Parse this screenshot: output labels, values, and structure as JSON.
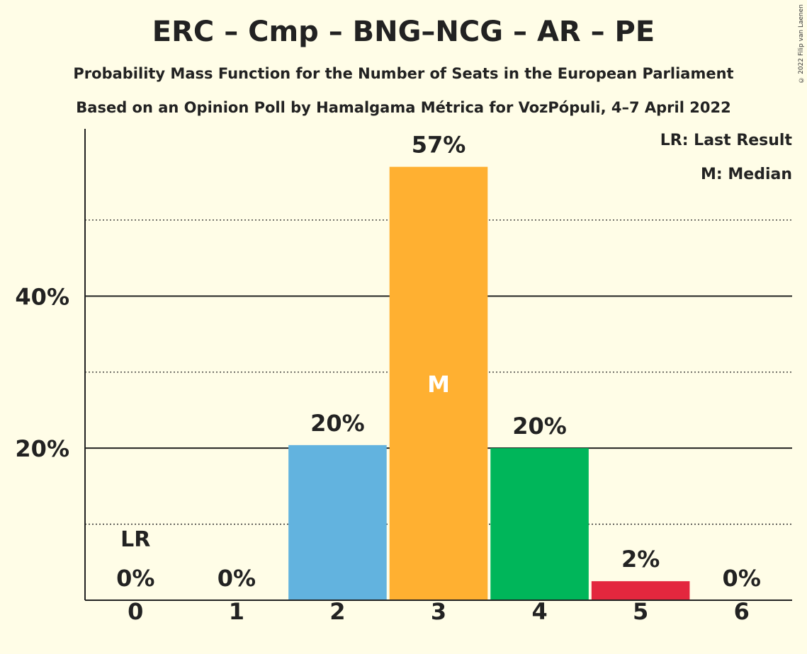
{
  "copyright": "© 2022 Filip van Laenen",
  "legend": {
    "last_result": "LR: Last Result",
    "median": "M: Median"
  },
  "chart_data": {
    "type": "bar",
    "title": "ERC – Cmp – BNG–NCG – AR – PE",
    "subtitle": "Probability Mass Function for the Number of Seats in the European Parliament",
    "subtitle2": "Based on an Opinion Poll by Hamalgama Métrica for VozPópuli, 4–7 April 2022",
    "categories": [
      "0",
      "1",
      "2",
      "3",
      "4",
      "5",
      "6"
    ],
    "values": [
      0,
      0,
      20.4,
      57,
      20,
      2.5,
      0
    ],
    "value_labels": [
      "0%",
      "0%",
      "20%",
      "57%",
      "20%",
      "2%",
      "0%"
    ],
    "colors": [
      "#62B3DF",
      "#62B3DF",
      "#62B3DF",
      "#FFB031",
      "#00B65A",
      "#E3273E",
      "#E3273E"
    ],
    "ylim": [
      0,
      62
    ],
    "yticks_major": [
      20,
      40
    ],
    "ytick_labels": [
      "20%",
      "40%"
    ],
    "yticks_minor": [
      10,
      30,
      50
    ],
    "last_result_index": 0,
    "last_result_label": "LR",
    "median_index": 3,
    "median_label": "M",
    "xlabel": "",
    "ylabel": ""
  }
}
